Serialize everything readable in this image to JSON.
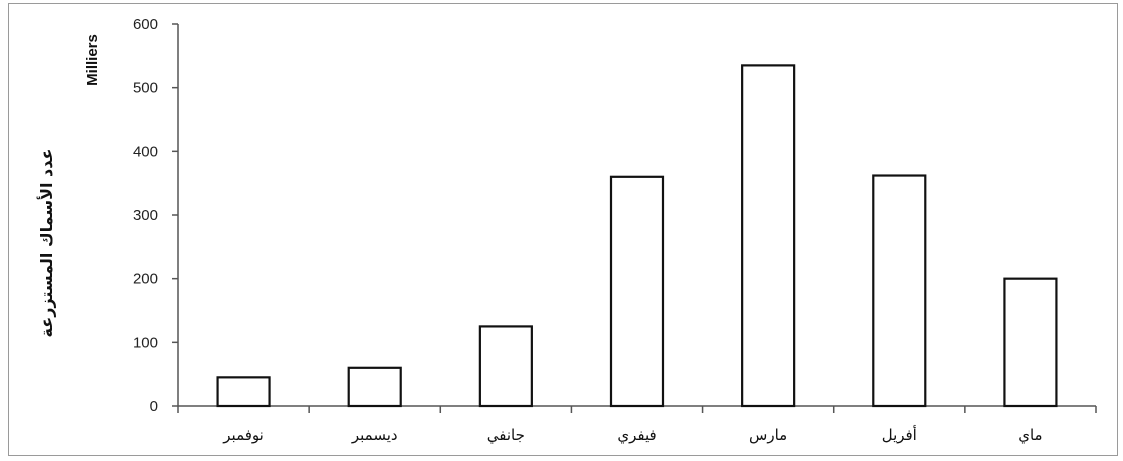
{
  "chart_data": {
    "type": "bar",
    "title": "",
    "xlabel": "",
    "ylabel": "عدد الأسماك المستزرعة",
    "y_unit": "Milliers",
    "ylim": [
      0,
      600
    ],
    "y_ticks": [
      0,
      100,
      200,
      300,
      400,
      500,
      600
    ],
    "categories": [
      "نوفمبر",
      "ديسمبر",
      "جانفي",
      "فيفري",
      "مارس",
      "أفريل",
      "ماي"
    ],
    "values": [
      45,
      60,
      125,
      360,
      535,
      362,
      200
    ],
    "grid": false,
    "legend": "none",
    "colors": {
      "bar_fill": "#ffffff",
      "bar_stroke": "#111111",
      "axis": "#555555",
      "frame": "#9a9a9a"
    }
  }
}
